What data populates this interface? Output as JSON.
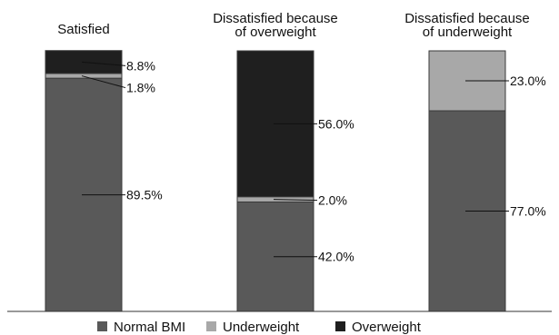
{
  "chart_data": {
    "type": "bar",
    "stacked": true,
    "categories": [
      "Satisfied",
      "Dissatisfied because of overweight",
      "Dissatisfied because of underweight"
    ],
    "category_title_lines": [
      [
        "Satisfied"
      ],
      [
        "Dissatisfied because",
        "of overweight"
      ],
      [
        "Dissatisfied because",
        "of underweight"
      ]
    ],
    "series": [
      {
        "name": "Normal BMI",
        "values": [
          89.5,
          42.0,
          77.0
        ],
        "labels": [
          "89.5%",
          "42.0%",
          "77.0%"
        ]
      },
      {
        "name": "Underweight",
        "values": [
          1.8,
          2.0,
          23.0
        ],
        "labels": [
          "1.8%",
          "2.0%",
          "23.0%"
        ]
      },
      {
        "name": "Overweight",
        "values": [
          8.8,
          56.0,
          0
        ],
        "labels": [
          "8.8%",
          "56.0%",
          ""
        ]
      }
    ],
    "ylim": [
      0,
      100
    ],
    "grid": false,
    "legend_position": "bottom",
    "colors": {
      "Normal BMI": "#595959",
      "Underweight": "#a8a8a8",
      "Overweight": "#1f1f1f"
    }
  }
}
